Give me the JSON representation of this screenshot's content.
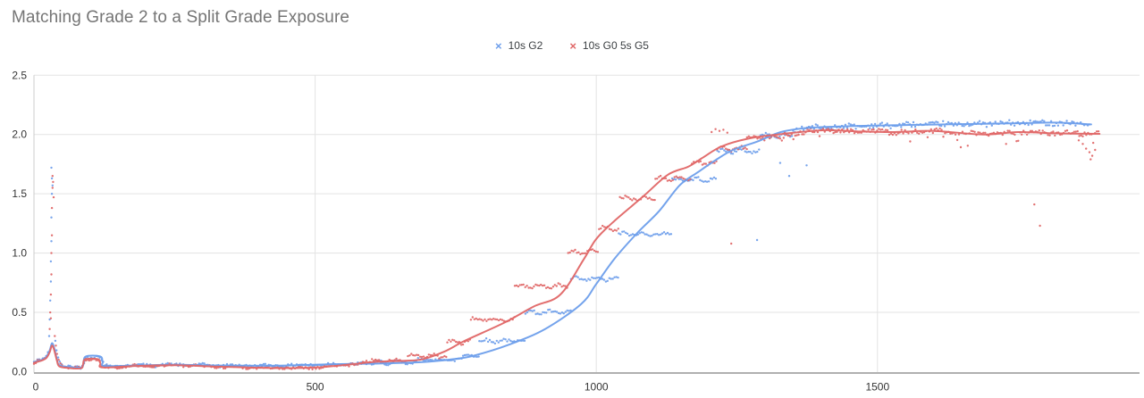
{
  "title": "Matching Grade 2 to a Split Grade Exposure",
  "chart_data": {
    "type": "scatter",
    "title": "Matching Grade 2 to a Split Grade Exposure",
    "xlabel": "",
    "ylabel": "",
    "x_ticks": [
      0,
      500,
      1000,
      1500
    ],
    "y_ticks": [
      "0.0",
      "0.5",
      "1.0",
      "1.5",
      "2.0",
      "2.5"
    ],
    "y_tick_values": [
      0,
      0.5,
      1.0,
      1.5,
      2.0,
      2.5
    ],
    "x_range": [
      0,
      1966
    ],
    "y_range": [
      0,
      2.5
    ],
    "grid": true,
    "legend_position": "top-center",
    "colors": {
      "grid": "#e3e3e3",
      "axis_bottom": "#b0b0b0",
      "axis_left": "#cccccc",
      "title_text": "#757575",
      "tick_text": "#333333",
      "legend_text": "#3c4043"
    },
    "noise": {
      "follow_amp": 0.012,
      "step_amp": 0.013,
      "step_wiggle": 0.012,
      "dot_spacing": 3.1
    },
    "series": [
      {
        "name": "10s G2",
        "color": "#6d9eeb",
        "marker": "x",
        "marker_glyph": "×",
        "seed": 42,
        "trend": [
          [
            0,
            0.08
          ],
          [
            14,
            0.1
          ],
          [
            22,
            0.125
          ],
          [
            28,
            0.18
          ],
          [
            32,
            0.24
          ],
          [
            36,
            0.2
          ],
          [
            41,
            0.1
          ],
          [
            45,
            0.055
          ],
          [
            60,
            0.04
          ],
          [
            83,
            0.035
          ],
          [
            88,
            0.06
          ],
          [
            92,
            0.128
          ],
          [
            118,
            0.128
          ],
          [
            122,
            0.08
          ],
          [
            126,
            0.048
          ],
          [
            180,
            0.052
          ],
          [
            250,
            0.058
          ],
          [
            330,
            0.052
          ],
          [
            417,
            0.05
          ],
          [
            480,
            0.056
          ],
          [
            530,
            0.063
          ],
          [
            607,
            0.068
          ],
          [
            660,
            0.075
          ],
          [
            703,
            0.085
          ],
          [
            745,
            0.105
          ],
          [
            782,
            0.135
          ],
          [
            846,
            0.23
          ],
          [
            909,
            0.36
          ],
          [
            973,
            0.57
          ],
          [
            1000,
            0.74
          ],
          [
            1032,
            0.95
          ],
          [
            1073,
            1.17
          ],
          [
            1111,
            1.35
          ],
          [
            1148,
            1.57
          ],
          [
            1180,
            1.68
          ],
          [
            1211,
            1.78
          ],
          [
            1243,
            1.87
          ],
          [
            1286,
            1.94
          ],
          [
            1328,
            2.02
          ],
          [
            1375,
            2.055
          ],
          [
            1450,
            2.07
          ],
          [
            1550,
            2.08
          ],
          [
            1620,
            2.085
          ],
          [
            1688,
            2.09
          ],
          [
            1750,
            2.095
          ],
          [
            1816,
            2.1
          ],
          [
            1880,
            2.085
          ]
        ],
        "scatter_segments": [
          {
            "type": "follow",
            "x0": 0,
            "x1": 26,
            "amp": 0.015
          },
          {
            "type": "follow",
            "x0": 55,
            "x1": 605,
            "amp": 0.012
          },
          {
            "type": "step",
            "x0": 605,
            "x1": 680,
            "level": 0.075
          },
          {
            "type": "step",
            "x0": 680,
            "x1": 763,
            "level": 0.1
          },
          {
            "type": "step",
            "x0": 763,
            "x1": 792,
            "level": 0.135
          },
          {
            "type": "step",
            "x0": 792,
            "x1": 874,
            "level": 0.26
          },
          {
            "type": "step",
            "x0": 874,
            "x1": 955,
            "level": 0.5
          },
          {
            "type": "step",
            "x0": 955,
            "x1": 1040,
            "level": 0.78
          },
          {
            "type": "step",
            "x0": 1040,
            "x1": 1135,
            "level": 1.16
          },
          {
            "type": "step",
            "x0": 1135,
            "x1": 1215,
            "level": 1.62
          },
          {
            "type": "step",
            "x0": 1215,
            "x1": 1292,
            "level": 1.86
          },
          {
            "type": "step",
            "x0": 1292,
            "x1": 1350,
            "level": 1.99
          },
          {
            "type": "follow",
            "x0": 1350,
            "x1": 1880,
            "amp": 0.022
          }
        ],
        "points": [
          [
            27,
            0.3
          ],
          [
            28,
            0.44
          ],
          [
            29,
            0.6
          ],
          [
            30,
            0.76
          ],
          [
            30,
            0.93
          ],
          [
            31,
            1.1
          ],
          [
            31,
            1.3
          ],
          [
            32,
            1.5
          ],
          [
            32,
            1.63
          ],
          [
            31,
            1.72
          ],
          [
            33,
            1.57
          ],
          [
            38,
            0.26
          ],
          [
            40,
            0.18
          ],
          [
            43,
            0.12
          ],
          [
            46,
            0.085
          ],
          [
            49,
            0.065
          ],
          [
            1286,
            1.11
          ],
          [
            1327,
            1.76
          ],
          [
            1343,
            1.65
          ],
          [
            1374,
            1.74
          ]
        ]
      },
      {
        "name": "10s G0 5s G5",
        "color": "#e06666",
        "marker": "x",
        "marker_glyph": "×",
        "seed": 1337,
        "trend": [
          [
            0,
            0.075
          ],
          [
            14,
            0.095
          ],
          [
            22,
            0.115
          ],
          [
            28,
            0.165
          ],
          [
            32,
            0.22
          ],
          [
            36,
            0.18
          ],
          [
            41,
            0.09
          ],
          [
            45,
            0.045
          ],
          [
            60,
            0.032
          ],
          [
            83,
            0.028
          ],
          [
            87,
            0.055
          ],
          [
            91,
            0.105
          ],
          [
            114,
            0.105
          ],
          [
            118,
            0.07
          ],
          [
            122,
            0.035
          ],
          [
            180,
            0.048
          ],
          [
            250,
            0.055
          ],
          [
            330,
            0.042
          ],
          [
            430,
            0.03
          ],
          [
            500,
            0.035
          ],
          [
            560,
            0.06
          ],
          [
            607,
            0.083
          ],
          [
            660,
            0.092
          ],
          [
            691,
            0.105
          ],
          [
            730,
            0.17
          ],
          [
            766,
            0.26
          ],
          [
            835,
            0.41
          ],
          [
            889,
            0.55
          ],
          [
            936,
            0.65
          ],
          [
            978,
            0.95
          ],
          [
            1000,
            1.12
          ],
          [
            1032,
            1.27
          ],
          [
            1084,
            1.48
          ],
          [
            1127,
            1.66
          ],
          [
            1164,
            1.73
          ],
          [
            1191,
            1.81
          ],
          [
            1223,
            1.9
          ],
          [
            1270,
            1.965
          ],
          [
            1323,
            2.0
          ],
          [
            1402,
            2.035
          ],
          [
            1470,
            2.025
          ],
          [
            1530,
            2.02
          ],
          [
            1600,
            2.03
          ],
          [
            1688,
            2.0
          ],
          [
            1750,
            2.02
          ],
          [
            1816,
            2.01
          ],
          [
            1895,
            2.005
          ]
        ],
        "scatter_segments": [
          {
            "type": "follow",
            "x0": 0,
            "x1": 26,
            "amp": 0.015
          },
          {
            "type": "follow",
            "x0": 55,
            "x1": 598,
            "amp": 0.012
          },
          {
            "type": "step",
            "x0": 598,
            "x1": 665,
            "level": 0.09
          },
          {
            "type": "step",
            "x0": 665,
            "x1": 735,
            "level": 0.13
          },
          {
            "type": "step",
            "x0": 735,
            "x1": 777,
            "level": 0.25
          },
          {
            "type": "step",
            "x0": 777,
            "x1": 855,
            "level": 0.44
          },
          {
            "type": "step",
            "x0": 855,
            "x1": 950,
            "level": 0.72
          },
          {
            "type": "step",
            "x0": 950,
            "x1": 1005,
            "level": 1.01
          },
          {
            "type": "step",
            "x0": 1005,
            "x1": 1042,
            "level": 1.21
          },
          {
            "type": "step",
            "x0": 1042,
            "x1": 1105,
            "level": 1.46
          },
          {
            "type": "step",
            "x0": 1105,
            "x1": 1170,
            "level": 1.63
          },
          {
            "type": "step",
            "x0": 1170,
            "x1": 1215,
            "level": 1.76
          },
          {
            "type": "step",
            "x0": 1215,
            "x1": 1268,
            "level": 1.88
          },
          {
            "type": "step",
            "x0": 1268,
            "x1": 1335,
            "level": 1.97
          },
          {
            "type": "follow",
            "x0": 1335,
            "x1": 1895,
            "amp": 0.02,
            "dip_prob": 0.05
          }
        ],
        "points": [
          [
            28,
            0.36
          ],
          [
            29,
            0.5
          ],
          [
            30,
            0.65
          ],
          [
            31,
            0.82
          ],
          [
            31,
            1.0
          ],
          [
            32,
            1.15
          ],
          [
            32,
            1.38
          ],
          [
            33,
            1.55
          ],
          [
            33,
            1.65
          ],
          [
            34,
            1.6
          ],
          [
            35,
            1.47
          ],
          [
            30,
            0.45
          ],
          [
            37,
            0.3
          ],
          [
            39,
            0.22
          ],
          [
            41,
            0.15
          ],
          [
            44,
            0.1
          ],
          [
            47,
            0.07
          ],
          [
            50,
            0.055
          ],
          [
            1205,
            2.02
          ],
          [
            1212,
            2.045
          ],
          [
            1219,
            2.03
          ],
          [
            1226,
            2.04
          ],
          [
            1233,
            2.015
          ],
          [
            1240,
            1.08
          ],
          [
            1779,
            1.41
          ],
          [
            1789,
            1.23
          ],
          [
            1858,
            1.95
          ],
          [
            1865,
            1.92
          ],
          [
            1871,
            1.88
          ],
          [
            1877,
            1.85
          ],
          [
            1882,
            1.82
          ],
          [
            1887,
            1.87
          ],
          [
            1879,
            1.79
          ]
        ]
      }
    ]
  }
}
